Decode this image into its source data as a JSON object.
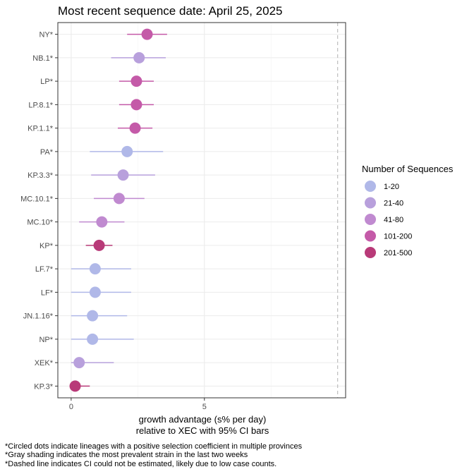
{
  "chart_data": {
    "type": "scatter",
    "title": "Most recent sequence date: April 25, 2025",
    "xlabel_line1": "growth advantage (s% per day)",
    "xlabel_line2": "relative to  XEC  with 95% CI bars",
    "x_ticks": [
      0,
      5
    ],
    "xlim": [
      -0.5,
      10.3
    ],
    "dashed_line_x": 10.0,
    "grid": true,
    "legend": {
      "title": "Number of Sequences",
      "placement": "right",
      "entries": [
        {
          "label": "1-20",
          "color": "#b0b8e8"
        },
        {
          "label": "21-40",
          "color": "#b8a0dc"
        },
        {
          "label": "41-80",
          "color": "#c08ad0"
        },
        {
          "label": "101-200",
          "color": "#c45aa8"
        },
        {
          "label": "201-500",
          "color": "#b83a78"
        }
      ]
    },
    "points": [
      {
        "lineage": "NY*",
        "x": 2.85,
        "lo": 2.1,
        "hi": 3.6,
        "bin": "101-200"
      },
      {
        "lineage": "NB.1*",
        "x": 2.55,
        "lo": 1.5,
        "hi": 3.55,
        "bin": "21-40"
      },
      {
        "lineage": "LP*",
        "x": 2.45,
        "lo": 1.8,
        "hi": 3.1,
        "bin": "101-200"
      },
      {
        "lineage": "LP.8.1*",
        "x": 2.45,
        "lo": 1.8,
        "hi": 3.1,
        "bin": "101-200"
      },
      {
        "lineage": "KP.1.1*",
        "x": 2.4,
        "lo": 1.75,
        "hi": 3.05,
        "bin": "101-200"
      },
      {
        "lineage": "PA*",
        "x": 2.1,
        "lo": 0.7,
        "hi": 3.45,
        "bin": "1-20"
      },
      {
        "lineage": "KP.3.3*",
        "x": 1.95,
        "lo": 0.75,
        "hi": 3.15,
        "bin": "21-40"
      },
      {
        "lineage": "MC.10.1*",
        "x": 1.8,
        "lo": 0.85,
        "hi": 2.75,
        "bin": "41-80"
      },
      {
        "lineage": "MC.10*",
        "x": 1.15,
        "lo": 0.3,
        "hi": 2.0,
        "bin": "41-80"
      },
      {
        "lineage": "KP*",
        "x": 1.05,
        "lo": 0.55,
        "hi": 1.55,
        "bin": "201-500"
      },
      {
        "lineage": "LF.7*",
        "x": 0.9,
        "lo": 0.0,
        "hi": 2.25,
        "bin": "1-20"
      },
      {
        "lineage": "LF*",
        "x": 0.9,
        "lo": 0.0,
        "hi": 2.25,
        "bin": "1-20"
      },
      {
        "lineage": "JN.1.16*",
        "x": 0.8,
        "lo": 0.0,
        "hi": 2.1,
        "bin": "1-20"
      },
      {
        "lineage": "NP*",
        "x": 0.8,
        "lo": 0.0,
        "hi": 2.35,
        "bin": "1-20"
      },
      {
        "lineage": "XEK*",
        "x": 0.3,
        "lo": 0.0,
        "hi": 1.6,
        "bin": "21-40"
      },
      {
        "lineage": "KP.3*",
        "x": 0.15,
        "lo": 0.0,
        "hi": 0.7,
        "bin": "201-500"
      }
    ]
  },
  "footnotes": [
    "*Circled dots indicate lineages with a positive selection coefficient in multiple provinces",
    "*Gray shading indicates the most prevalent strain in the last two weeks",
    "*Dashed line indicates CI could not be estimated, likely due to low case counts."
  ]
}
